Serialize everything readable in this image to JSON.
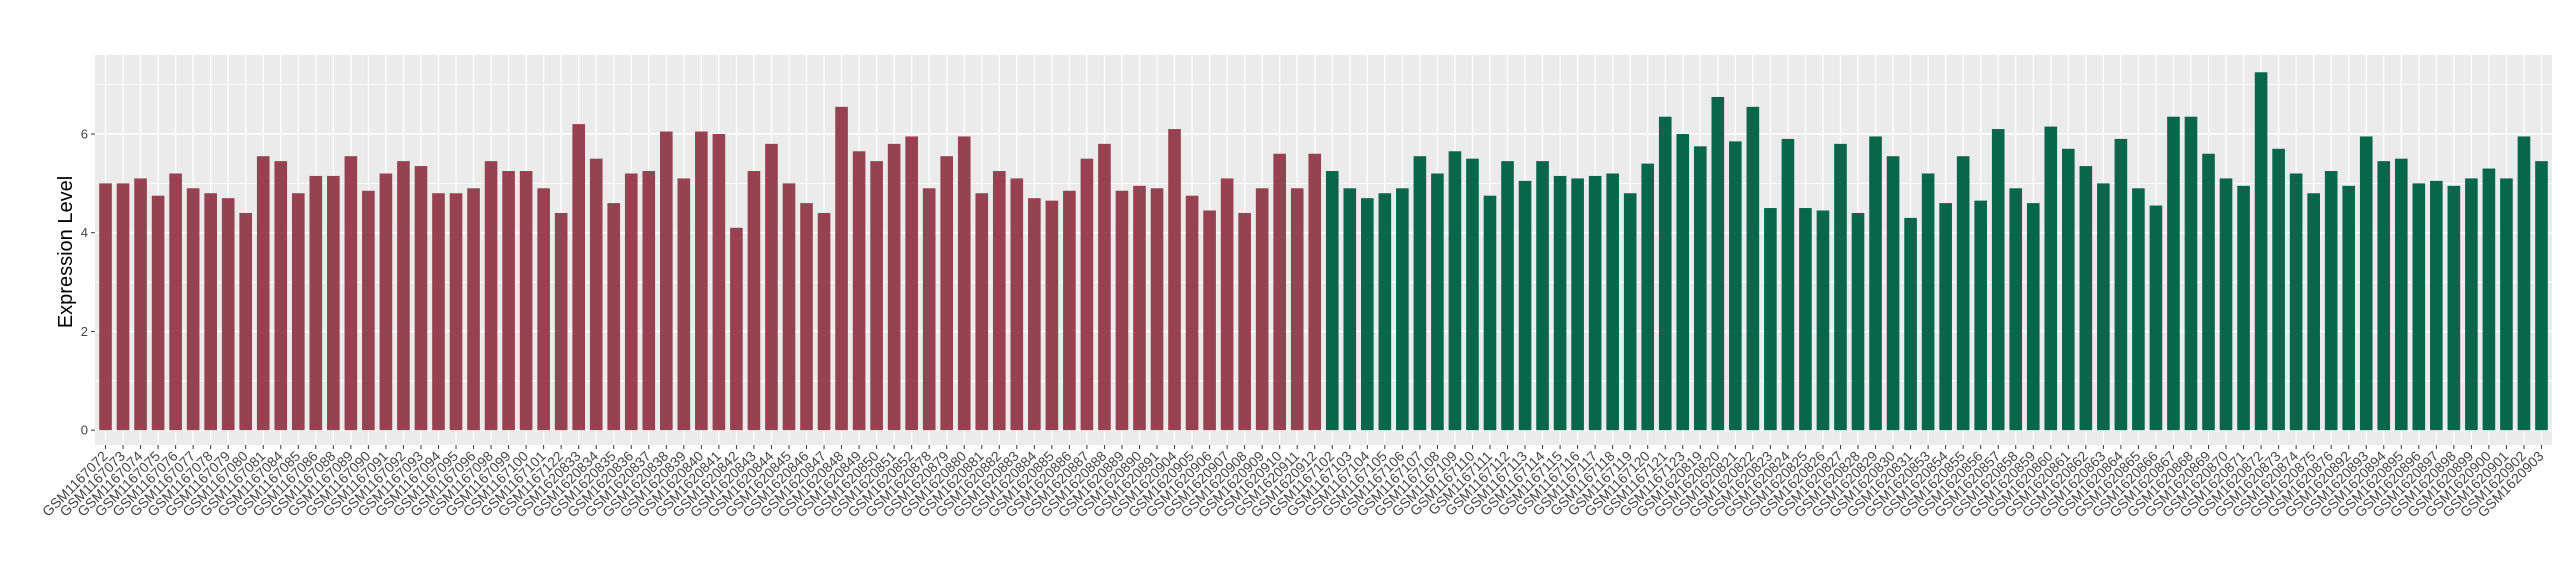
{
  "chart_data": {
    "type": "bar",
    "title": "",
    "xlabel": "",
    "ylabel": "Expression Level",
    "ylim": [
      -0.3,
      7.6
    ],
    "yticks": [
      0,
      2,
      4,
      6
    ],
    "grid": true,
    "legend": "none",
    "colors": {
      "group1": "#964250",
      "group2": "#08674A",
      "panel": "#EBEBEB",
      "grid": "#FFFFFF"
    },
    "series": [
      {
        "color_key": "group1",
        "categories": [
          "GSM1167072",
          "GSM1167073",
          "GSM1167074",
          "GSM1167075",
          "GSM1167076",
          "GSM1167077",
          "GSM1167078",
          "GSM1167079",
          "GSM1167080",
          "GSM1167081",
          "GSM1167084",
          "GSM1167085",
          "GSM1167086",
          "GSM1167088",
          "GSM1167089",
          "GSM1167090",
          "GSM1167091",
          "GSM1167092",
          "GSM1167093",
          "GSM1167094",
          "GSM1167095",
          "GSM1167096",
          "GSM1167098",
          "GSM1167099",
          "GSM1167100",
          "GSM1167101",
          "GSM1167122",
          "GSM1620833",
          "GSM1620834",
          "GSM1620835",
          "GSM1620836",
          "GSM1620837",
          "GSM1620838",
          "GSM1620839",
          "GSM1620840",
          "GSM1620841",
          "GSM1620842",
          "GSM1620843",
          "GSM1620844",
          "GSM1620845",
          "GSM1620846",
          "GSM1620847",
          "GSM1620848",
          "GSM1620849",
          "GSM1620850",
          "GSM1620851",
          "GSM1620852",
          "GSM1620878",
          "GSM1620879",
          "GSM1620880",
          "GSM1620881",
          "GSM1620882",
          "GSM1620883",
          "GSM1620884",
          "GSM1620885",
          "GSM1620886",
          "GSM1620887",
          "GSM1620888",
          "GSM1620889",
          "GSM1620890",
          "GSM1620891",
          "GSM1620904",
          "GSM1620905",
          "GSM1620906",
          "GSM1620907",
          "GSM1620908",
          "GSM1620909",
          "GSM1620910",
          "GSM1620911",
          "GSM1620912"
        ],
        "values": [
          5.0,
          5.0,
          5.1,
          4.75,
          5.2,
          4.9,
          4.8,
          4.7,
          4.4,
          5.55,
          5.45,
          4.8,
          5.15,
          5.15,
          5.55,
          4.85,
          5.2,
          5.45,
          5.35,
          4.8,
          4.8,
          4.9,
          5.45,
          5.25,
          5.25,
          4.9,
          4.4,
          6.2,
          5.5,
          4.6,
          5.2,
          5.25,
          6.05,
          5.1,
          6.05,
          6.0,
          4.1,
          5.25,
          5.8,
          5.0,
          4.6,
          4.4,
          6.55,
          5.65,
          5.45,
          5.8,
          5.95,
          4.9,
          5.55,
          5.95,
          4.8,
          5.25,
          5.1,
          4.7,
          4.65,
          4.85,
          5.5,
          5.8,
          4.85,
          4.95,
          4.9,
          6.1,
          4.75,
          4.45,
          5.1,
          4.4,
          4.9,
          5.6,
          4.9,
          5.6
        ]
      },
      {
        "color_key": "group2",
        "categories": [
          "GSM1167102",
          "GSM1167103",
          "GSM1167104",
          "GSM1167105",
          "GSM1167106",
          "GSM1167107",
          "GSM1167108",
          "GSM1167109",
          "GSM1167110",
          "GSM1167111",
          "GSM1167112",
          "GSM1167113",
          "GSM1167114",
          "GSM1167115",
          "GSM1167116",
          "GSM1167117",
          "GSM1167118",
          "GSM1167119",
          "GSM1167120",
          "GSM1167121",
          "GSM1167123",
          "GSM1620819",
          "GSM1620820",
          "GSM1620821",
          "GSM1620822",
          "GSM1620823",
          "GSM1620824",
          "GSM1620825",
          "GSM1620826",
          "GSM1620827",
          "GSM1620828",
          "GSM1620829",
          "GSM1620830",
          "GSM1620831",
          "GSM1620853",
          "GSM1620854",
          "GSM1620855",
          "GSM1620856",
          "GSM1620857",
          "GSM1620858",
          "GSM1620859",
          "GSM1620860",
          "GSM1620861",
          "GSM1620862",
          "GSM1620863",
          "GSM1620864",
          "GSM1620865",
          "GSM1620866",
          "GSM1620867",
          "GSM1620868",
          "GSM1620869",
          "GSM1620870",
          "GSM1620871",
          "GSM1620872",
          "GSM1620873",
          "GSM1620874",
          "GSM1620875",
          "GSM1620876",
          "GSM1620892",
          "GSM1620893",
          "GSM1620894",
          "GSM1620895",
          "GSM1620896",
          "GSM1620897",
          "GSM1620898",
          "GSM1620899",
          "GSM1620900",
          "GSM1620901",
          "GSM1620902",
          "GSM1620903"
        ],
        "values": [
          5.25,
          4.9,
          4.7,
          4.8,
          4.9,
          5.55,
          5.2,
          5.65,
          5.5,
          4.75,
          5.45,
          5.05,
          5.45,
          5.15,
          5.1,
          5.15,
          5.2,
          4.8,
          5.4,
          6.35,
          6.0,
          5.75,
          6.75,
          5.85,
          6.55,
          4.5,
          5.9,
          4.5,
          4.45,
          5.8,
          4.4,
          5.95,
          5.55,
          4.3,
          5.2,
          4.6,
          5.55,
          4.65,
          6.1,
          4.9,
          4.6,
          6.15,
          5.7,
          5.35,
          5.0,
          5.9,
          4.9,
          4.55,
          6.35,
          6.35,
          5.6,
          5.1,
          4.95,
          7.25,
          5.7,
          5.2,
          4.8,
          5.25,
          4.95,
          5.95,
          5.45,
          5.5,
          5.0,
          5.05,
          4.95,
          5.1,
          5.3,
          5.1,
          5.95,
          5.45
        ]
      }
    ]
  }
}
